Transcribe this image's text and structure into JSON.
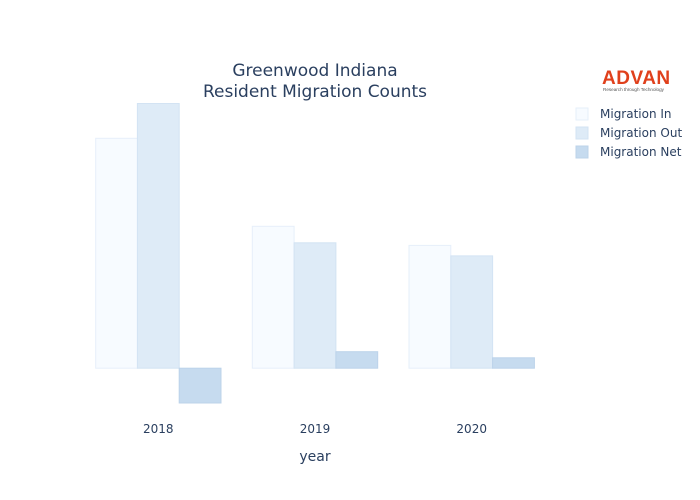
{
  "chart_data": {
    "type": "bar",
    "title_lines": [
      "Greenwood Indiana",
      "Resident Migration Counts"
    ],
    "xlabel": "year",
    "ylabel": "",
    "categories": [
      "2018",
      "2019",
      "2020"
    ],
    "series": [
      {
        "name": "Migration In",
        "values": [
          13200,
          8150,
          7050
        ],
        "color": "#f7fbff",
        "stroke": "#e6effa"
      },
      {
        "name": "Migration Out",
        "values": [
          15200,
          7200,
          6450
        ],
        "color": "#deebf7",
        "stroke": "#d3e3f3"
      },
      {
        "name": "Migration Net",
        "values": [
          -2000,
          950,
          600
        ],
        "color": "#c6dbef",
        "stroke": "#bcd3ea"
      }
    ],
    "ylim": [
      -2400,
      15400
    ],
    "grid": false,
    "legend_position": "top-right"
  },
  "logo": {
    "name": "ADVAN",
    "tagline": "Research through Technology"
  }
}
